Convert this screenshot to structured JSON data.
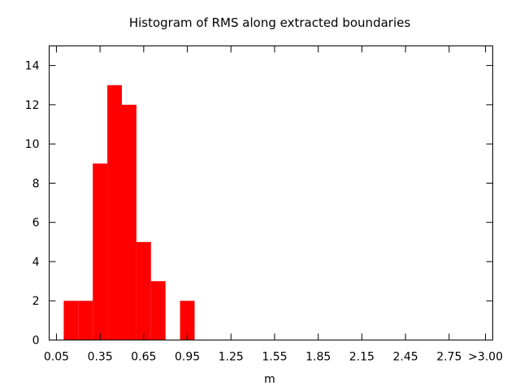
{
  "chart_data": {
    "type": "bar",
    "title": "Histogram of RMS along extracted boundaries",
    "xlabel": "m",
    "ylabel": "",
    "xlim": [
      0.0,
      3.05
    ],
    "ylim": [
      0,
      15
    ],
    "bin_width": 0.1,
    "x_ticks": [
      {
        "value": 0.05,
        "label": "0.05"
      },
      {
        "value": 0.35,
        "label": "0.35"
      },
      {
        "value": 0.65,
        "label": "0.65"
      },
      {
        "value": 0.95,
        "label": "0.95"
      },
      {
        "value": 1.25,
        "label": "1.25"
      },
      {
        "value": 1.55,
        "label": "1.55"
      },
      {
        "value": 1.85,
        "label": "1.85"
      },
      {
        "value": 2.15,
        "label": "2.15"
      },
      {
        "value": 2.45,
        "label": "2.45"
      },
      {
        "value": 2.75,
        "label": "2.75"
      },
      {
        "value": 3.0,
        "label": ">3.00"
      }
    ],
    "y_ticks": [
      0,
      2,
      4,
      6,
      8,
      10,
      12,
      14
    ],
    "bins": [
      {
        "x": 0.15,
        "value": 2
      },
      {
        "x": 0.25,
        "value": 2
      },
      {
        "x": 0.35,
        "value": 9
      },
      {
        "x": 0.45,
        "value": 13
      },
      {
        "x": 0.55,
        "value": 12
      },
      {
        "x": 0.65,
        "value": 5
      },
      {
        "x": 0.75,
        "value": 3
      },
      {
        "x": 0.85,
        "value": 0
      },
      {
        "x": 0.95,
        "value": 2
      }
    ],
    "bar_color": "#ff0000",
    "grid": false
  }
}
